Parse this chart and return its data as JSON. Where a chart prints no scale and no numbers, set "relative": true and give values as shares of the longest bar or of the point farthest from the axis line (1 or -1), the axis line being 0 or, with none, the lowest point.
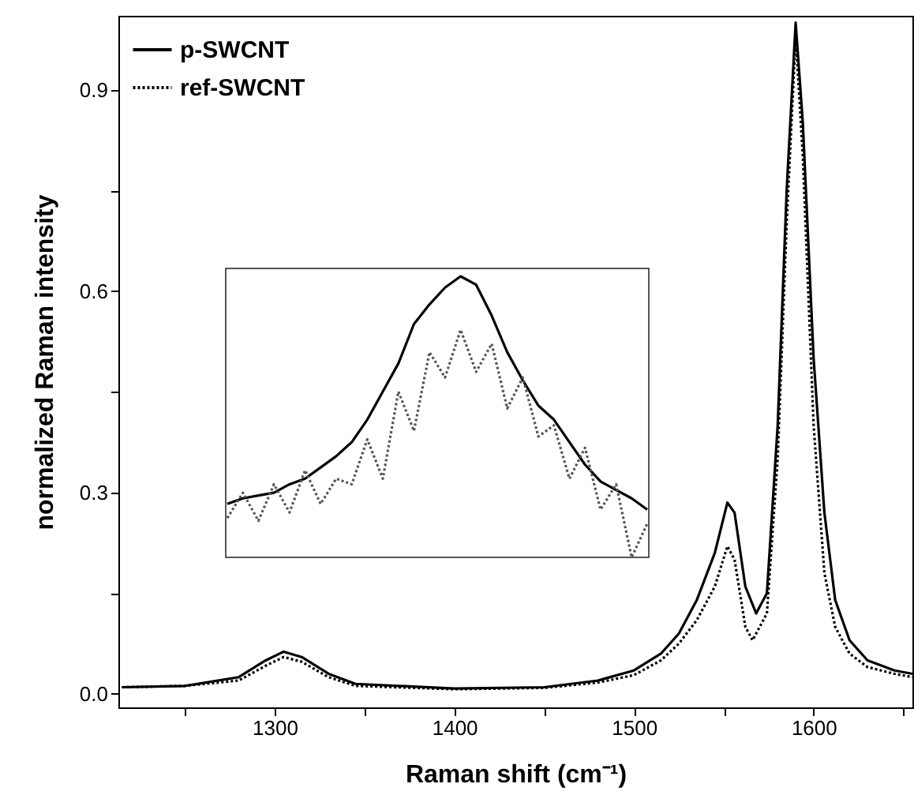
{
  "chart_data": [
    {
      "type": "line",
      "xlabel": "Raman shift (cm⁻¹)",
      "ylabel": "normalized Raman intensity",
      "xlim": [
        1213,
        1655
      ],
      "ylim": [
        -0.02,
        1.01
      ],
      "xticks": [
        {
          "value": 1250,
          "label": null
        },
        1300,
        {
          "value": 1350,
          "label": null
        },
        1400,
        {
          "value": 1450,
          "label": null
        },
        1500,
        {
          "value": 1550,
          "label": null
        },
        1600,
        {
          "value": 1650,
          "label": null
        }
      ],
      "yticks": [
        {
          "value": 0,
          "label": "0.0"
        },
        {
          "value": 0.15,
          "label": null
        },
        {
          "value": 0.3,
          "label": "0.3"
        },
        {
          "value": 0.45,
          "label": null
        },
        {
          "value": 0.6,
          "label": "0.6"
        },
        {
          "value": 0.75,
          "label": null
        },
        {
          "value": 0.9,
          "label": "0.9"
        }
      ],
      "grid": false,
      "legend": "top left",
      "marker": "none",
      "series": [
        {
          "name": "p-SWCNT",
          "color": "#000000",
          "line_style": "solid",
          "x": [
            1215,
            1250,
            1280,
            1295,
            1305,
            1315,
            1330,
            1345,
            1400,
            1450,
            1480,
            1500,
            1515,
            1525,
            1535,
            1545,
            1552,
            1556,
            1562,
            1568,
            1574,
            1580,
            1585,
            1590,
            1594,
            1600,
            1606,
            1612,
            1620,
            1630,
            1645,
            1655
          ],
          "values": [
            0.01,
            0.012,
            0.025,
            0.05,
            0.063,
            0.055,
            0.03,
            0.015,
            0.008,
            0.01,
            0.02,
            0.035,
            0.06,
            0.09,
            0.14,
            0.21,
            0.285,
            0.27,
            0.16,
            0.12,
            0.15,
            0.4,
            0.75,
            1.0,
            0.85,
            0.5,
            0.27,
            0.14,
            0.08,
            0.05,
            0.035,
            0.03
          ]
        },
        {
          "name": "ref-SWCNT",
          "color": "#000000",
          "line_style": "dotted",
          "x": [
            1215,
            1250,
            1280,
            1295,
            1305,
            1315,
            1330,
            1345,
            1400,
            1450,
            1480,
            1500,
            1515,
            1525,
            1535,
            1545,
            1552,
            1556,
            1562,
            1566,
            1574,
            1580,
            1585,
            1590,
            1594,
            1600,
            1606,
            1612,
            1620,
            1630,
            1645,
            1655
          ],
          "values": [
            0.01,
            0.012,
            0.02,
            0.042,
            0.055,
            0.048,
            0.025,
            0.012,
            0.007,
            0.009,
            0.017,
            0.028,
            0.05,
            0.075,
            0.11,
            0.16,
            0.22,
            0.2,
            0.1,
            0.08,
            0.12,
            0.35,
            0.7,
            0.98,
            0.8,
            0.4,
            0.18,
            0.1,
            0.06,
            0.04,
            0.03,
            0.025
          ]
        }
      ]
    },
    {
      "type": "line",
      "relative": true,
      "marker": "none",
      "categories": [
        null,
        null,
        null,
        null,
        null,
        null,
        null,
        null,
        null,
        null,
        null,
        null,
        null,
        null,
        null,
        null,
        null,
        null,
        null,
        null,
        null,
        null,
        null,
        null,
        null,
        null,
        null,
        null
      ],
      "series": [
        {
          "color": "#000000",
          "line_style": "solid",
          "values": [
            0.19,
            0.21,
            0.22,
            0.23,
            0.26,
            0.28,
            0.32,
            0.36,
            0.41,
            0.49,
            0.59,
            0.69,
            0.83,
            0.9,
            0.96,
            1.0,
            0.97,
            0.86,
            0.73,
            0.63,
            0.54,
            0.49,
            0.41,
            0.33,
            0.27,
            0.24,
            0.21,
            0.17
          ]
        },
        {
          "color": "#555555",
          "line_style": "dotted",
          "values": [
            0.14,
            0.23,
            0.13,
            0.26,
            0.16,
            0.31,
            0.19,
            0.28,
            0.26,
            0.42,
            0.28,
            0.59,
            0.45,
            0.73,
            0.64,
            0.81,
            0.66,
            0.76,
            0.53,
            0.64,
            0.43,
            0.47,
            0.28,
            0.39,
            0.17,
            0.26,
            0.0,
            0.12
          ]
        }
      ]
    }
  ]
}
